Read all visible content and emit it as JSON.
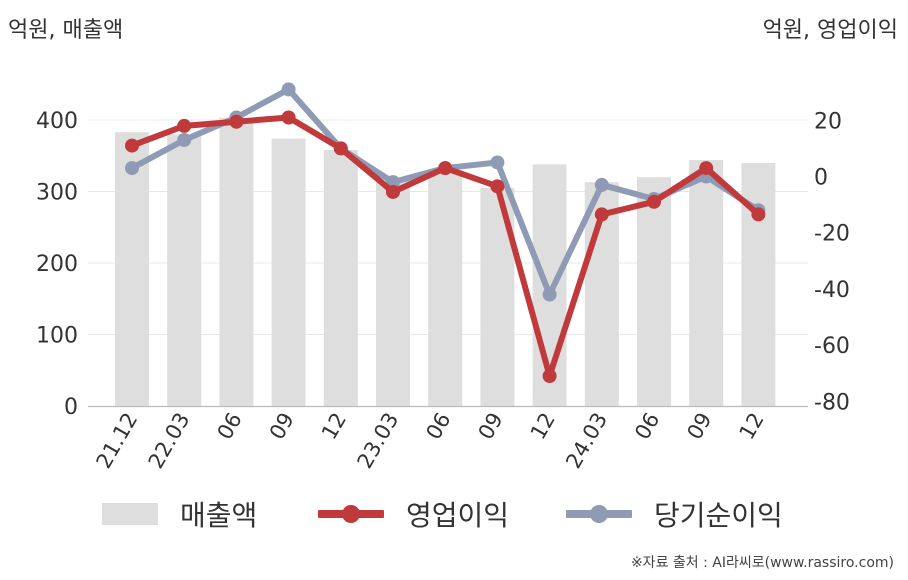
{
  "axis_units": {
    "left": "억원, 매출액",
    "right": "억원, 영업이익"
  },
  "colors": {
    "bar": "#dedede",
    "operating_profit": "#c0393b",
    "net_income": "#8f9ab5",
    "grid": "#e8e8e8",
    "axis": "#bbbbbb"
  },
  "legend": {
    "bar_label": "매출액",
    "op_label": "영업이익",
    "net_label": "당기순이익"
  },
  "source": "※자료 출처 : AI라씨로(www.rassiro.com)",
  "chart_data": {
    "type": "bar",
    "categories": [
      "21.12",
      "22.03",
      "06",
      "09",
      "12",
      "23.03",
      "06",
      "09",
      "12",
      "24.03",
      "06",
      "09",
      "12"
    ],
    "series": [
      {
        "name": "매출액",
        "type": "bar",
        "axis": "left",
        "values": [
          383,
          380,
          403,
          374,
          358,
          315,
          330,
          305,
          338,
          313,
          320,
          344,
          340
        ]
      },
      {
        "name": "영업이익",
        "type": "line",
        "axis": "right",
        "values": [
          11,
          18,
          19.5,
          21,
          10,
          -5.5,
          3,
          -3.5,
          -71,
          -13.5,
          -9,
          3,
          -13.5
        ]
      },
      {
        "name": "당기순이익",
        "type": "line",
        "axis": "right",
        "values": [
          3,
          13,
          21,
          31,
          10,
          -2,
          3,
          5,
          -42,
          -3,
          -8,
          0,
          -12
        ]
      }
    ],
    "left_axis": {
      "ylim": [
        0,
        500
      ],
      "ticks": [
        "0",
        "100",
        "200",
        "300",
        "400"
      ]
    },
    "right_axis": {
      "ylim": [
        -80,
        40
      ],
      "ticks": [
        "-80",
        "-60",
        "-40",
        "-20",
        "0",
        "20"
      ]
    },
    "grid": true,
    "legend_position": "bottom"
  }
}
